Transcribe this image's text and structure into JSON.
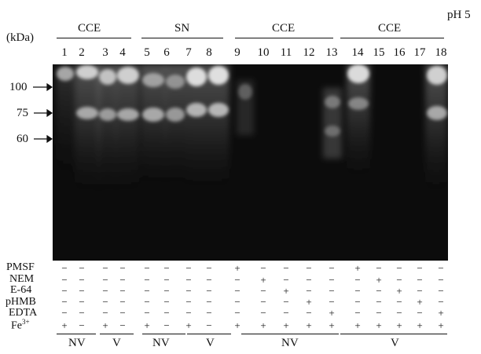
{
  "ph_label": "pH 5",
  "kda_label": "(kDa)",
  "groups": [
    "CCE",
    "SN",
    "CCE",
    "CCE"
  ],
  "lanes": [
    "1",
    "2",
    "3",
    "4",
    "5",
    "6",
    "7",
    "8",
    "9",
    "10",
    "11",
    "12",
    "13",
    "14",
    "15",
    "16",
    "17",
    "18"
  ],
  "markers": [
    "100",
    "75",
    "60"
  ],
  "reagents": [
    {
      "name": "PMSF",
      "signs": [
        "−",
        "−",
        "−",
        "−",
        "−",
        "−",
        "−",
        "−",
        "+",
        "−",
        "−",
        "−",
        "−",
        "+",
        "−",
        "−",
        "−",
        "−"
      ]
    },
    {
      "name": "NEM",
      "signs": [
        "−",
        "−",
        "−",
        "−",
        "−",
        "−",
        "−",
        "−",
        "−",
        "+",
        "−",
        "−",
        "−",
        "−",
        "+",
        "−",
        "−",
        "−"
      ]
    },
    {
      "name": "E-64",
      "signs": [
        "−",
        "−",
        "−",
        "−",
        "−",
        "−",
        "−",
        "−",
        "−",
        "−",
        "+",
        "−",
        "−",
        "−",
        "−",
        "+",
        "−",
        "−"
      ]
    },
    {
      "name": "pHMB",
      "signs": [
        "−",
        "−",
        "−",
        "−",
        "−",
        "−",
        "−",
        "−",
        "−",
        "−",
        "−",
        "+",
        "−",
        "−",
        "−",
        "−",
        "+",
        "−"
      ]
    },
    {
      "name": "EDTA",
      "signs": [
        "−",
        "−",
        "−",
        "−",
        "−",
        "−",
        "−",
        "−",
        "−",
        "−",
        "−",
        "−",
        "+",
        "−",
        "−",
        "−",
        "−",
        "+"
      ]
    },
    {
      "name": "Fe3+",
      "signs": [
        "+",
        "−",
        "+",
        "−",
        "+",
        "−",
        "+",
        "−",
        "+",
        "+",
        "+",
        "+",
        "+",
        "+",
        "+",
        "+",
        "+",
        "+"
      ]
    }
  ],
  "bottom_groups": [
    "NV",
    "V",
    "NV",
    "V",
    "NV",
    "V"
  ]
}
